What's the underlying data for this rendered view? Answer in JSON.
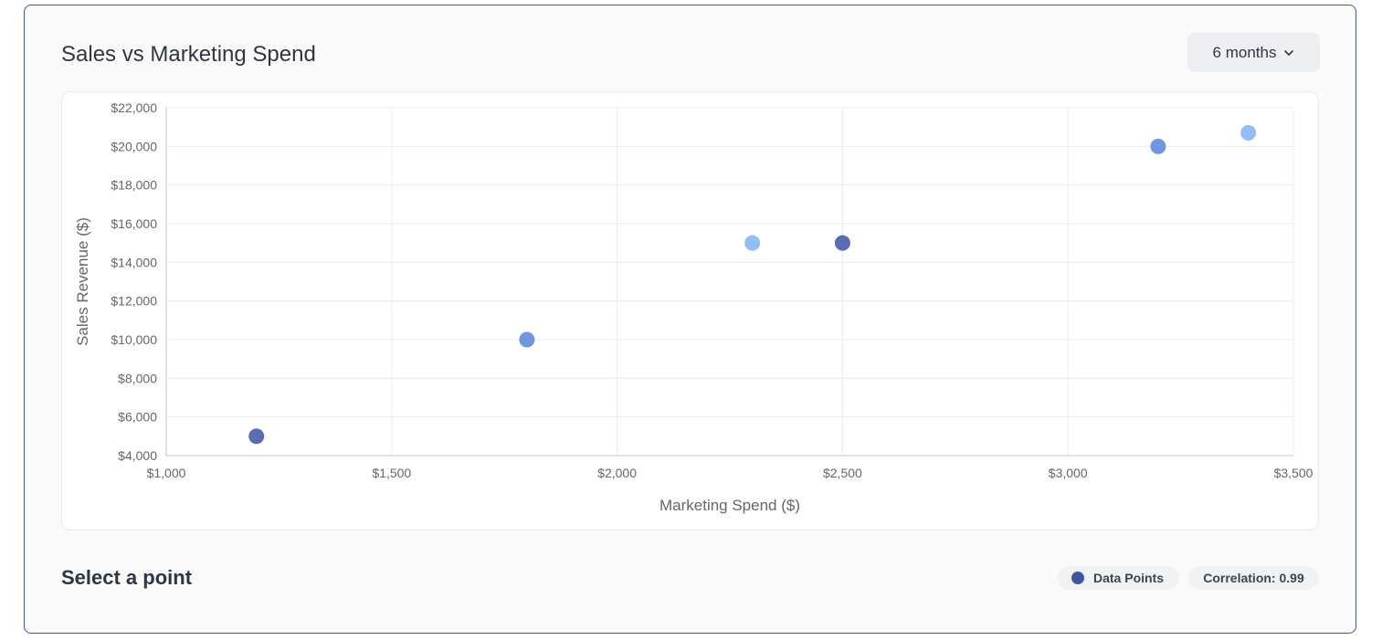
{
  "card": {
    "title": "Sales vs Marketing Spend",
    "period_label": "6 months",
    "period_icon": "chevron-down-icon"
  },
  "footer": {
    "selected_text": "Select a point",
    "legend_label": "Data Points",
    "correlation_label": "Correlation: 0.99"
  },
  "colors": {
    "accent": "#3f57a8",
    "legend_dot": "#3e55a3",
    "point_dark": "#5a6db4",
    "point_mid": "#7096e3",
    "point_light": "#93bdf7",
    "grid": "#ececec"
  },
  "chart_data": {
    "type": "scatter",
    "xlabel": "Marketing Spend ($)",
    "ylabel": "Sales Revenue ($)",
    "xlim": [
      1000,
      3500
    ],
    "ylim": [
      4000,
      22000
    ],
    "x_ticks": [
      1000,
      1500,
      2000,
      2500,
      3000,
      3500
    ],
    "x_tick_labels": [
      "$1,000",
      "$1,500",
      "$2,000",
      "$2,500",
      "$3,000",
      "$3,500"
    ],
    "y_ticks": [
      4000,
      6000,
      8000,
      10000,
      12000,
      14000,
      16000,
      18000,
      20000,
      22000
    ],
    "y_tick_labels": [
      "$4,000",
      "$6,000",
      "$8,000",
      "$10,000",
      "$12,000",
      "$14,000",
      "$16,000",
      "$18,000",
      "$20,000",
      "$22,000"
    ],
    "grid": true,
    "series": [
      {
        "name": "Data Points",
        "points": [
          {
            "x": 1200,
            "y": 5000,
            "color": "#5a6db4"
          },
          {
            "x": 1800,
            "y": 10000,
            "color": "#7096e3"
          },
          {
            "x": 2300,
            "y": 15000,
            "color": "#93bdf7"
          },
          {
            "x": 2500,
            "y": 15000,
            "color": "#5a6db4"
          },
          {
            "x": 3200,
            "y": 20000,
            "color": "#7096e3"
          },
          {
            "x": 3400,
            "y": 20700,
            "color": "#93bdf7"
          }
        ]
      }
    ]
  }
}
